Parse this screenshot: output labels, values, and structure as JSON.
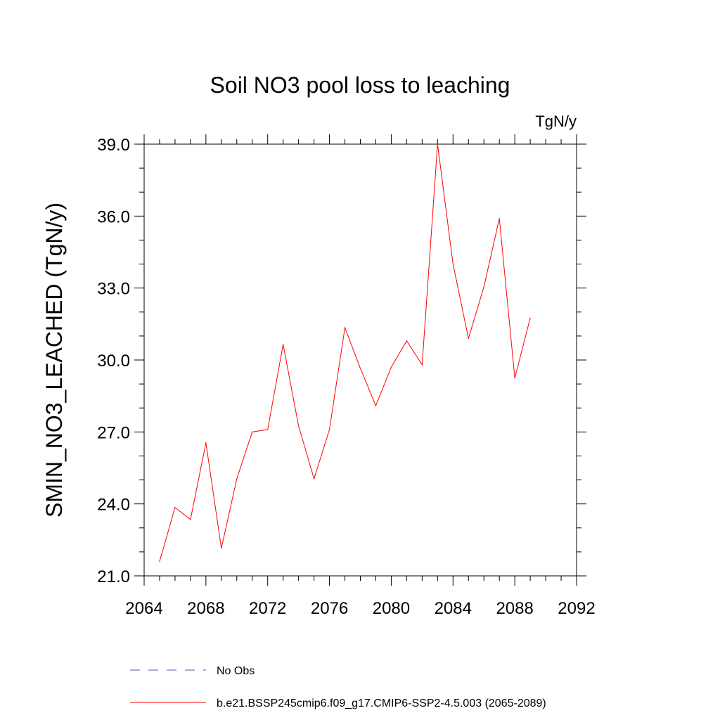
{
  "chart_data": {
    "type": "line",
    "title": "Soil NO3 pool loss to leaching",
    "units": "TgN/y",
    "ylabel": "SMIN_NO3_LEACHED  (TgN/y)",
    "xlabel": "",
    "xlim": [
      2064,
      2092
    ],
    "ylim": [
      21.0,
      39.0
    ],
    "x_ticks": [
      2064,
      2068,
      2072,
      2076,
      2080,
      2084,
      2088,
      2092
    ],
    "x_tick_labels": [
      "2064",
      "2068",
      "2072",
      "2076",
      "2080",
      "2084",
      "2088",
      "2092"
    ],
    "y_ticks": [
      21,
      24,
      27,
      30,
      33,
      36,
      39
    ],
    "y_tick_labels": [
      "21.0",
      "24.0",
      "27.0",
      "30.0",
      "33.0",
      "36.0",
      "39.0"
    ],
    "grid": false,
    "legend_position": "bottom",
    "series": [
      {
        "name": "b.e21.BSSP245cmip6.f09_g17.CMIP6-SSP2-4.5.003 (2065-2089)",
        "color": "#ff0000",
        "dash": "solid",
        "x": [
          2065,
          2066,
          2067,
          2068,
          2069,
          2070,
          2071,
          2072,
          2073,
          2074,
          2075,
          2076,
          2077,
          2078,
          2079,
          2080,
          2081,
          2082,
          2083,
          2084,
          2085,
          2086,
          2087,
          2088,
          2089
        ],
        "y": [
          21.6,
          23.85,
          23.35,
          26.55,
          22.15,
          25.05,
          27.0,
          27.1,
          30.65,
          27.25,
          25.05,
          27.1,
          31.35,
          29.65,
          28.1,
          29.7,
          30.8,
          29.8,
          39.0,
          34.0,
          30.9,
          33.05,
          35.9,
          29.25,
          31.75
        ]
      }
    ],
    "legend_entries": [
      {
        "name": "No Obs",
        "color": "#5555aa",
        "dash": "dashed"
      },
      {
        "name": "b.e21.BSSP245cmip6.f09_g17.CMIP6-SSP2-4.5.003 (2065-2089)",
        "color": "#ff0000",
        "dash": "solid"
      }
    ]
  }
}
